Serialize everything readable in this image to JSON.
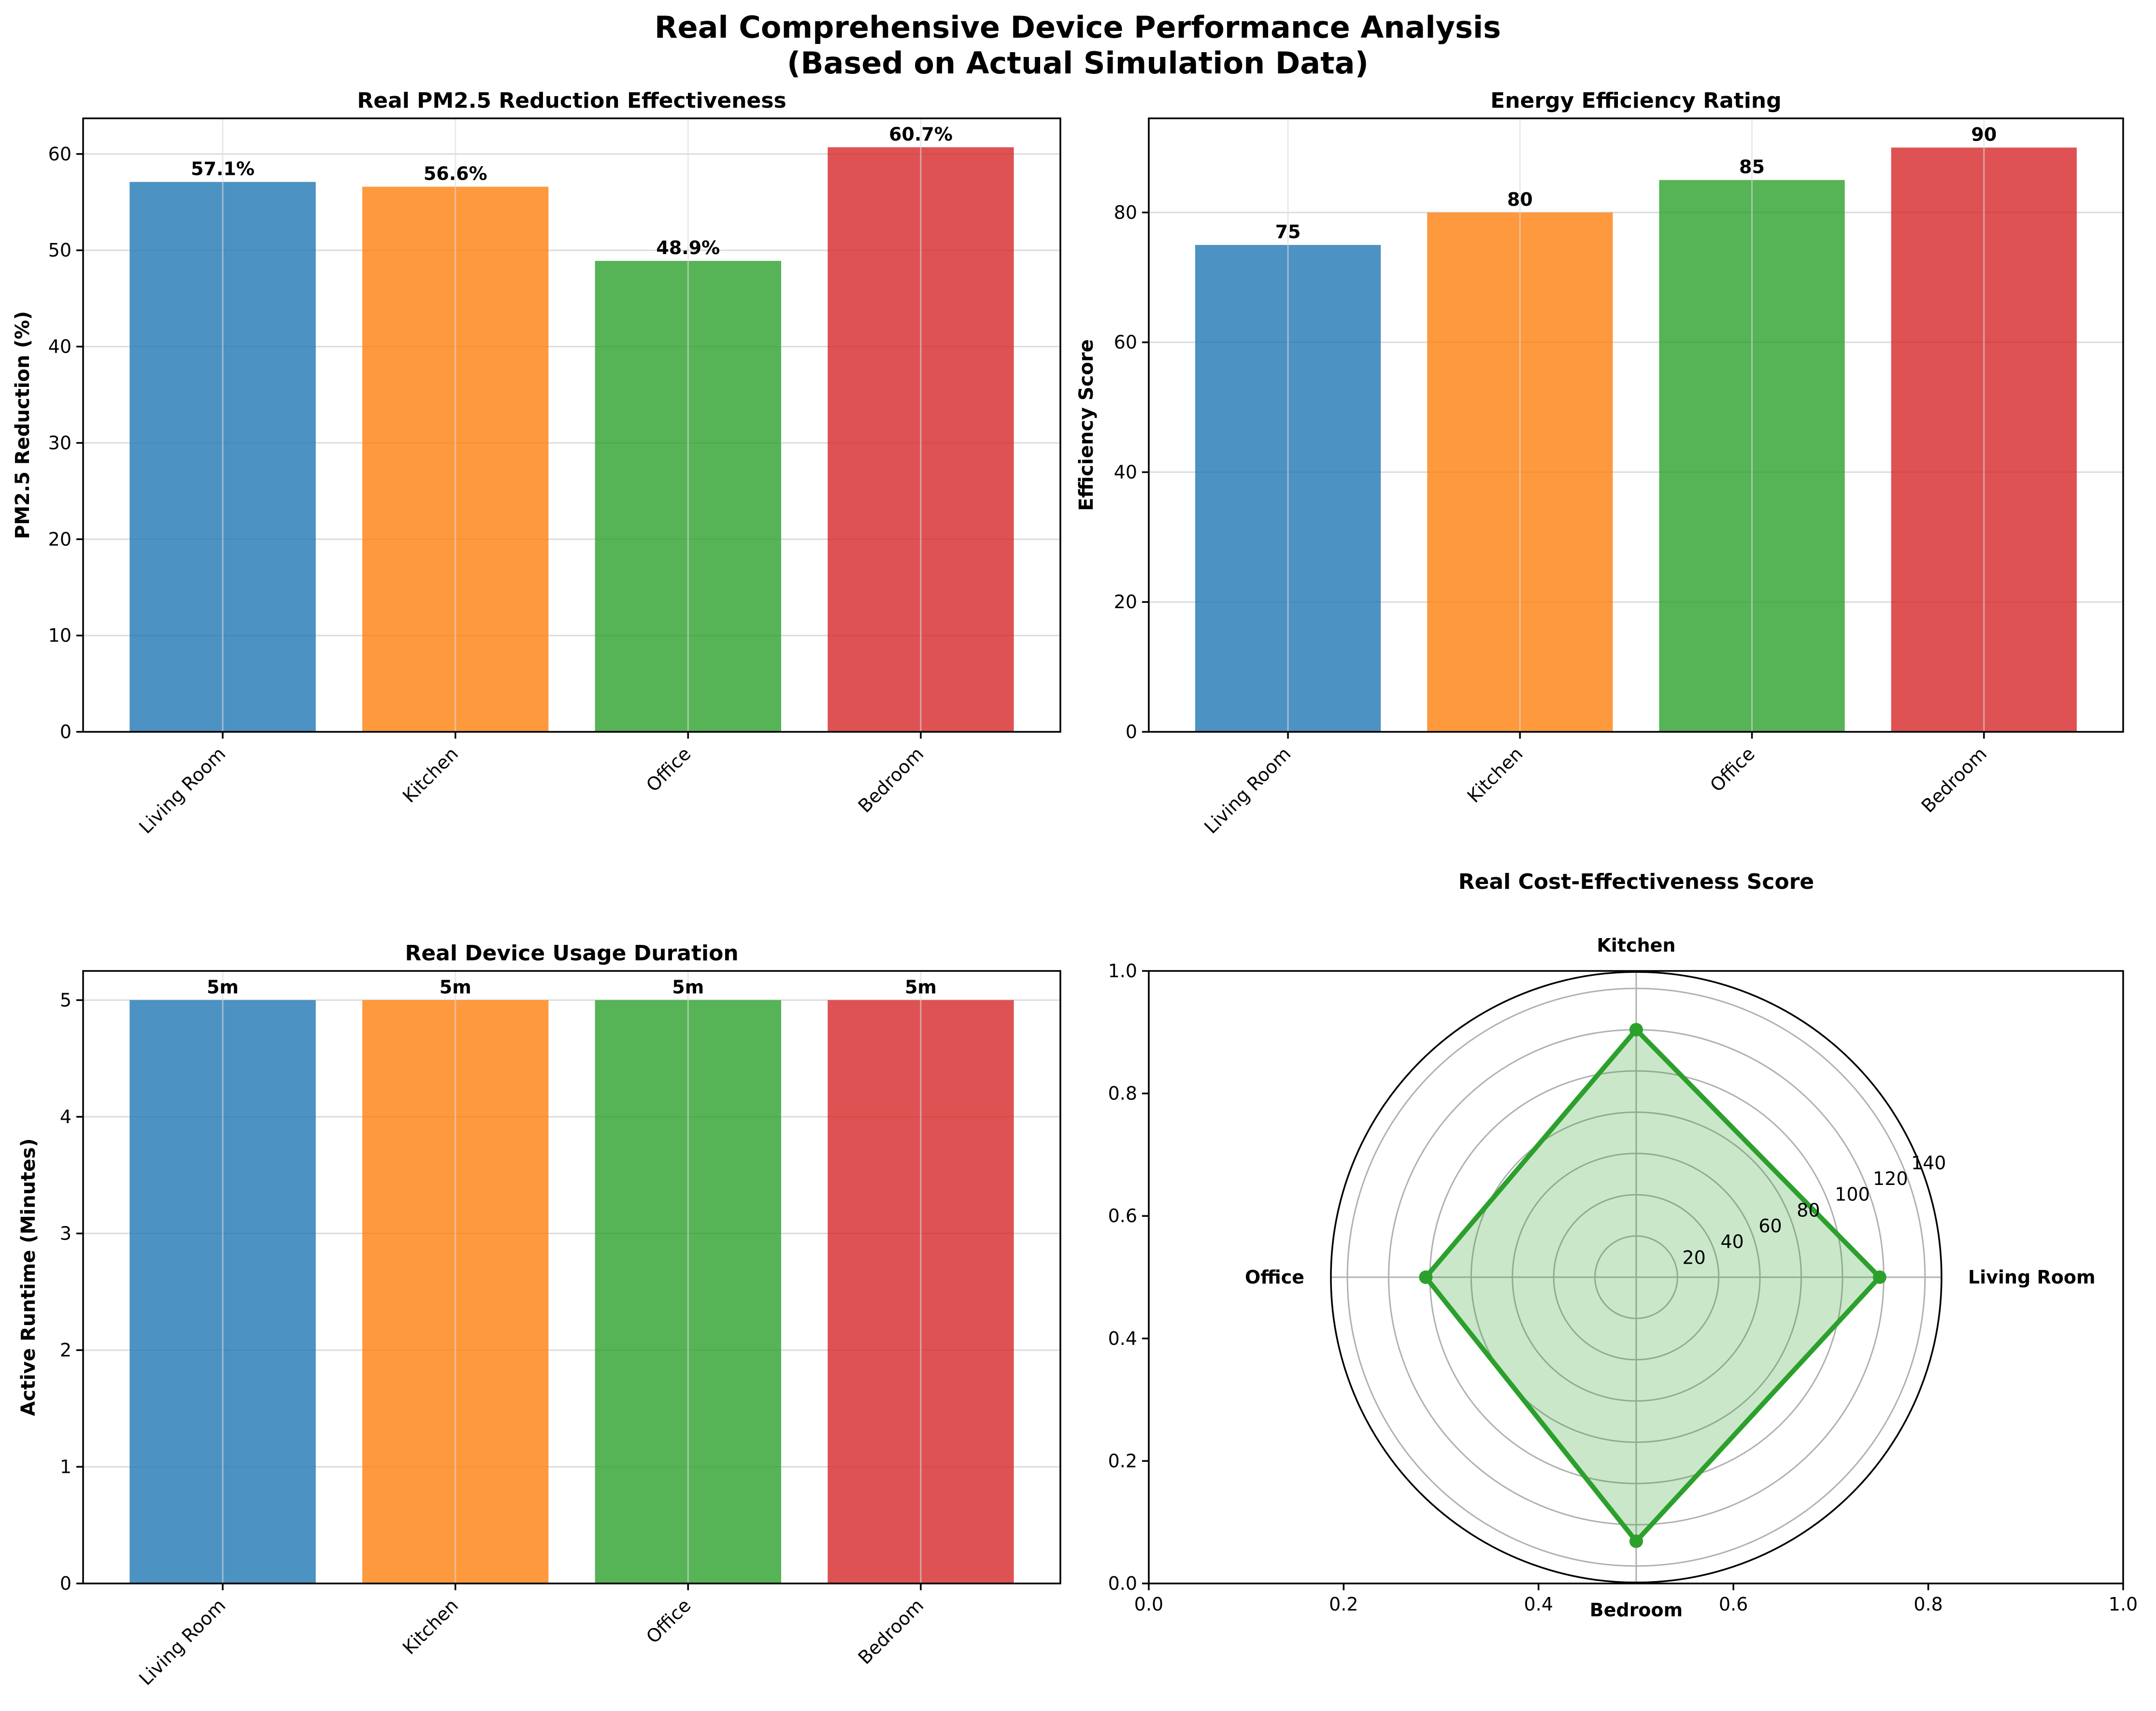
{
  "figure": {
    "title_line1": "Real Comprehensive Device Performance Analysis",
    "title_line2": "(Based on Actual Simulation Data)"
  },
  "chart_data": [
    {
      "id": "pm25",
      "type": "bar",
      "title": "Real PM2.5 Reduction Effectiveness",
      "xlabel": "",
      "ylabel": "PM2.5 Reduction (%)",
      "categories": [
        "Living Room",
        "Kitchen",
        "Office",
        "Bedroom"
      ],
      "values": [
        57.1,
        56.6,
        48.9,
        60.7
      ],
      "value_labels": [
        "57.1%",
        "56.6%",
        "48.9%",
        "60.7%"
      ],
      "colors": [
        "#1f77b4",
        "#ff7f0e",
        "#2ca02c",
        "#d62728"
      ],
      "ylim": [
        0,
        63.7
      ],
      "yticks": [
        0,
        10,
        20,
        30,
        40,
        50,
        60
      ],
      "grid": true
    },
    {
      "id": "energy",
      "type": "bar",
      "title": "Energy Efficiency Rating",
      "xlabel": "",
      "ylabel": "Efficiency Score",
      "categories": [
        "Living Room",
        "Kitchen",
        "Office",
        "Bedroom"
      ],
      "values": [
        75,
        80,
        85,
        90
      ],
      "value_labels": [
        "75",
        "80",
        "85",
        "90"
      ],
      "colors": [
        "#1f77b4",
        "#ff7f0e",
        "#2ca02c",
        "#d62728"
      ],
      "ylim": [
        0,
        94.5
      ],
      "yticks": [
        0,
        20,
        40,
        60,
        80
      ],
      "grid": true
    },
    {
      "id": "usage",
      "type": "bar",
      "title": "Real Device Usage Duration",
      "xlabel": "",
      "ylabel": "Active Runtime (Minutes)",
      "categories": [
        "Living Room",
        "Kitchen",
        "Office",
        "Bedroom"
      ],
      "values": [
        5,
        5,
        5,
        5
      ],
      "value_labels": [
        "5m",
        "5m",
        "5m",
        "5m"
      ],
      "colors": [
        "#1f77b4",
        "#ff7f0e",
        "#2ca02c",
        "#d62728"
      ],
      "ylim": [
        0,
        5.25
      ],
      "yticks": [
        0,
        1,
        2,
        3,
        4,
        5
      ],
      "grid": true
    },
    {
      "id": "cost",
      "type": "radar",
      "title": "Real Cost-Effectiveness Score",
      "categories": [
        "Living Room",
        "Kitchen",
        "Office",
        "Bedroom"
      ],
      "values": [
        118,
        120,
        102,
        128
      ],
      "rmax": 148,
      "rticks": [
        20,
        40,
        60,
        80,
        100,
        120,
        140
      ],
      "color": "#2ca02c",
      "fill_color": "#2ca02c",
      "cartesian_xticks": [
        "0.0",
        "0.2",
        "0.4",
        "0.6",
        "0.8",
        "1.0"
      ],
      "cartesian_yticks": [
        "0.0",
        "0.2",
        "0.4",
        "0.6",
        "0.8",
        "1.0"
      ]
    }
  ]
}
